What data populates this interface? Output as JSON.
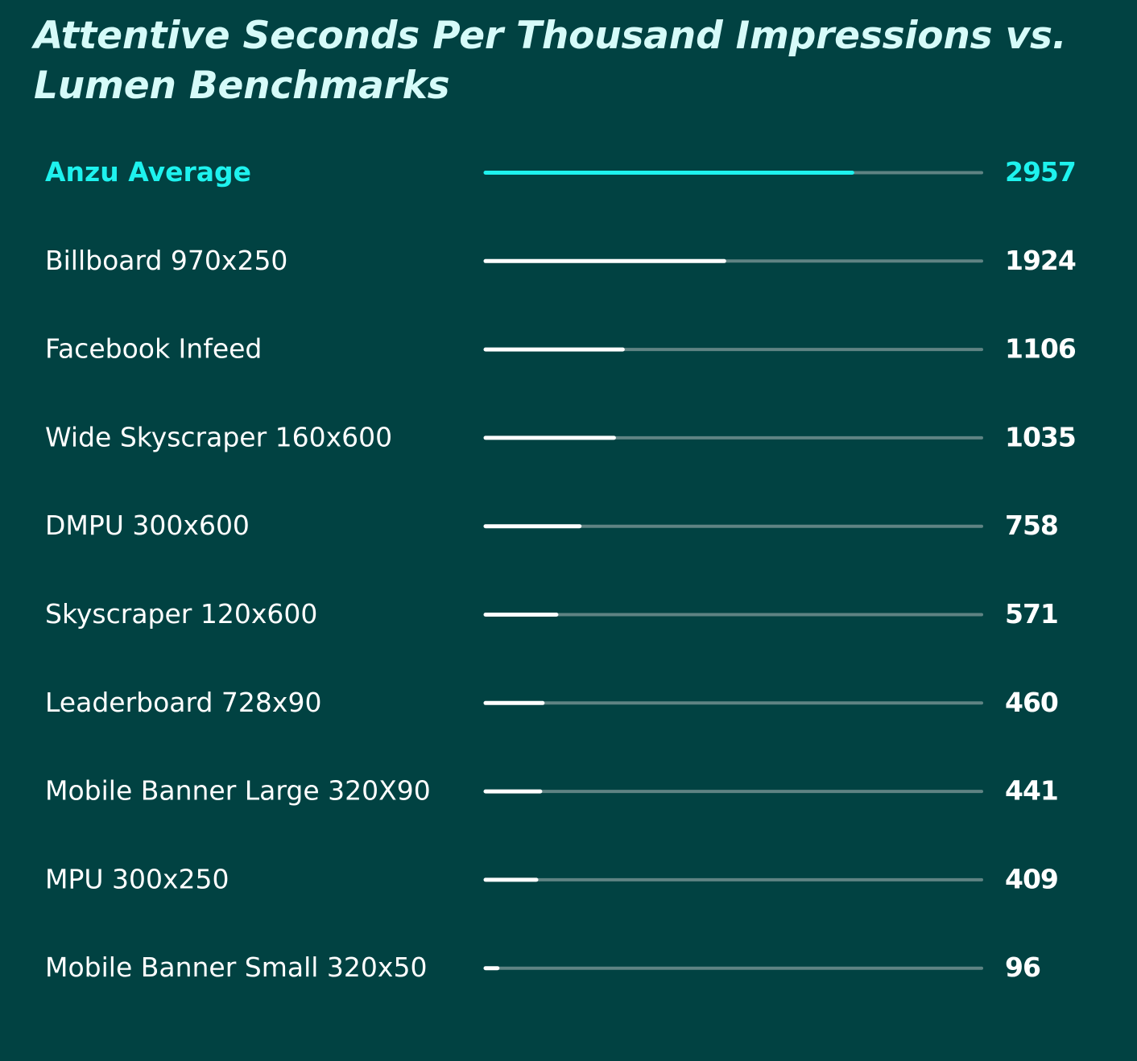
{
  "chart_data": {
    "type": "bar",
    "orientation": "horizontal",
    "title": "Attentive Seconds Per Thousand  Impressions vs. Lumen Benchmarks",
    "categories": [
      "Anzu Average",
      "Billboard 970x250",
      "Facebook Infeed",
      "Wide Skyscraper 160x600",
      "DMPU 300x600",
      "Skyscraper 120x600",
      "Leaderboard 728x90",
      "Mobile Banner Large 320X90",
      "MPU 300x250",
      "Mobile Banner Small 320x50"
    ],
    "values": [
      2957,
      1924,
      1106,
      1035,
      758,
      571,
      460,
      441,
      409,
      96
    ],
    "value_labels": [
      "2957",
      "1924",
      "1106",
      "1035",
      "758",
      "571",
      "460",
      "441",
      "409",
      "96"
    ],
    "xlim": [
      0,
      4000
    ],
    "highlight_index": 0,
    "grid": false,
    "legend": "none",
    "colors": {
      "background": "#014242",
      "highlight": "#1ef2ee",
      "bar": "#ffffff",
      "track": "#5f8383",
      "title": "#d6fbf9"
    }
  }
}
